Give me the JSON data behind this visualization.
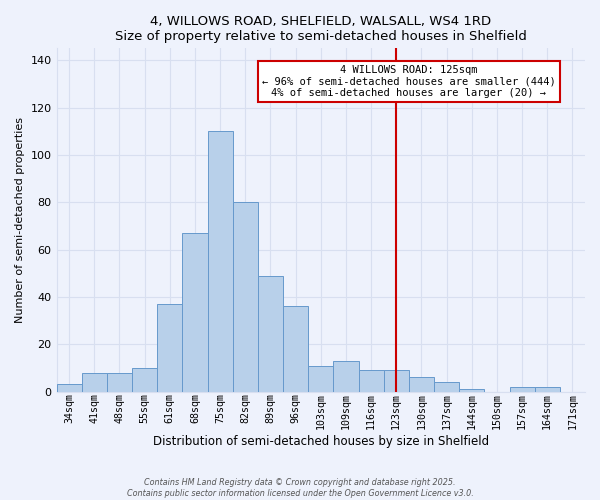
{
  "title1": "4, WILLOWS ROAD, SHELFIELD, WALSALL, WS4 1RD",
  "title2": "Size of property relative to semi-detached houses in Shelfield",
  "xlabel": "Distribution of semi-detached houses by size in Shelfield",
  "ylabel": "Number of semi-detached properties",
  "bin_labels": [
    "34sqm",
    "41sqm",
    "48sqm",
    "55sqm",
    "61sqm",
    "68sqm",
    "75sqm",
    "82sqm",
    "89sqm",
    "96sqm",
    "103sqm",
    "109sqm",
    "116sqm",
    "123sqm",
    "130sqm",
    "137sqm",
    "144sqm",
    "150sqm",
    "157sqm",
    "164sqm",
    "171sqm"
  ],
  "bar_heights": [
    3,
    8,
    8,
    10,
    37,
    67,
    110,
    80,
    49,
    36,
    11,
    13,
    9,
    9,
    6,
    4,
    1,
    0,
    2,
    2,
    0
  ],
  "bar_color": "#b8d0ea",
  "bar_edge_color": "#6699cc",
  "vline_index": 13,
  "vline_color": "#cc0000",
  "annotation_title": "4 WILLOWS ROAD: 125sqm",
  "annotation_line1": "← 96% of semi-detached houses are smaller (444)",
  "annotation_line2": "4% of semi-detached houses are larger (20) →",
  "annotation_box_color": "#ffffff",
  "annotation_box_edge": "#cc0000",
  "ylim": [
    0,
    145
  ],
  "yticks": [
    0,
    20,
    40,
    60,
    80,
    100,
    120,
    140
  ],
  "footnote1": "Contains HM Land Registry data © Crown copyright and database right 2025.",
  "footnote2": "Contains public sector information licensed under the Open Government Licence v3.0.",
  "bg_color": "#eef2fc",
  "grid_color": "#d8dff0"
}
